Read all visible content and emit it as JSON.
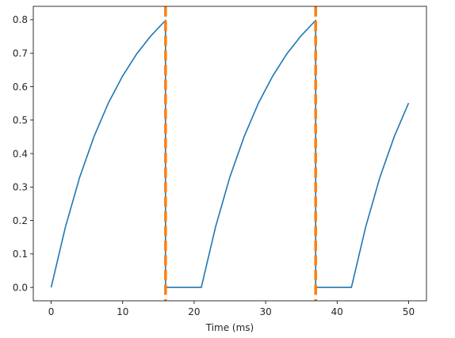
{
  "chart_data": {
    "type": "line",
    "title": "",
    "xlabel": "Time (ms)",
    "ylabel": "",
    "xlim": [
      -2.5,
      52.5
    ],
    "ylim": [
      -0.04,
      0.84
    ],
    "xticks": [
      0,
      10,
      20,
      30,
      40,
      50
    ],
    "yticks": [
      0.0,
      0.1,
      0.2,
      0.3,
      0.4,
      0.5,
      0.6,
      0.7,
      0.8
    ],
    "ytick_labels": [
      "0.0",
      "0.1",
      "0.2",
      "0.3",
      "0.4",
      "0.5",
      "0.6",
      "0.7",
      "0.8"
    ],
    "grid": false,
    "legend": "none",
    "series": [
      {
        "color": "#1f77b4",
        "style": "solid",
        "x": [
          0,
          2,
          4,
          6,
          8,
          10,
          12,
          14,
          16,
          16,
          21,
          23,
          25,
          27,
          29,
          31,
          33,
          35,
          37,
          37,
          42,
          44,
          46,
          48,
          50
        ],
        "y": [
          0.0,
          0.181,
          0.33,
          0.451,
          0.551,
          0.632,
          0.699,
          0.753,
          0.798,
          0.0,
          0.0,
          0.181,
          0.33,
          0.451,
          0.551,
          0.632,
          0.699,
          0.753,
          0.798,
          0.0,
          0.0,
          0.181,
          0.33,
          0.451,
          0.551
        ]
      }
    ],
    "vlines": [
      {
        "x": 16,
        "color": "#ff7f0e",
        "style": "dashed"
      },
      {
        "x": 37,
        "color": "#ff7f0e",
        "style": "dashed"
      }
    ]
  }
}
